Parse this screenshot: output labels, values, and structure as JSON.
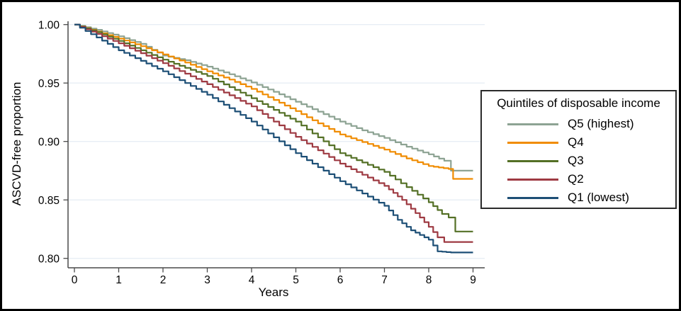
{
  "figure": {
    "y_axis_label": "ASCVD-free proportion",
    "x_axis_label": "Years"
  },
  "legend": {
    "title": "Quintiles of disposable income"
  },
  "colors": {
    "grid": "#e7eef5",
    "axis": "#4a4a4a",
    "tick_text": "#000000",
    "background": "#ffffff",
    "frame": "#000000"
  },
  "chart_data": {
    "type": "line",
    "subtype": "kaplan-meier-step",
    "title": "",
    "xlabel": "Years",
    "ylabel": "ASCVD-free proportion",
    "xlim": [
      0,
      9
    ],
    "ylim": [
      0.8,
      1.0
    ],
    "x_ticks": [
      0,
      1,
      2,
      3,
      4,
      5,
      6,
      7,
      8,
      9
    ],
    "y_ticks": [
      1.0,
      0.95,
      0.9,
      0.85,
      0.8
    ],
    "y_tick_labels": [
      "1.00",
      "0.95",
      "0.90",
      "0.85",
      "0.80"
    ],
    "grid": true,
    "legend_title": "Quintiles of disposable income",
    "legend_position": "right",
    "series": [
      {
        "name": "Q5 (highest)",
        "color": "#8da393",
        "points": [
          [
            0,
            1.0
          ],
          [
            0.5,
            0.9955
          ],
          [
            1,
            0.99
          ],
          [
            1.5,
            0.9835
          ],
          [
            2,
            0.9735
          ],
          [
            2.5,
            0.9695
          ],
          [
            3,
            0.964
          ],
          [
            3.5,
            0.9575
          ],
          [
            4,
            0.9505
          ],
          [
            4.5,
            0.9425
          ],
          [
            5,
            0.934
          ],
          [
            5.5,
            0.9255
          ],
          [
            6,
            0.917
          ],
          [
            6.5,
            0.9095
          ],
          [
            7,
            0.903
          ],
          [
            7.5,
            0.8955
          ],
          [
            8,
            0.889
          ],
          [
            8.35,
            0.8835
          ],
          [
            8.5,
            0.875
          ],
          [
            9,
            0.875
          ]
        ]
      },
      {
        "name": "Q4",
        "color": "#f08c00",
        "points": [
          [
            0,
            1.0
          ],
          [
            0.5,
            0.994
          ],
          [
            1,
            0.988
          ],
          [
            1.5,
            0.9815
          ],
          [
            2,
            0.9745
          ],
          [
            2.5,
            0.9675
          ],
          [
            3,
            0.96
          ],
          [
            3.5,
            0.953
          ],
          [
            4,
            0.945
          ],
          [
            4.5,
            0.9355
          ],
          [
            5,
            0.926
          ],
          [
            5.5,
            0.9155
          ],
          [
            6,
            0.906
          ],
          [
            6.5,
            0.8995
          ],
          [
            7,
            0.893
          ],
          [
            7.5,
            0.8855
          ],
          [
            8,
            0.879
          ],
          [
            8.45,
            0.8765
          ],
          [
            8.55,
            0.868
          ],
          [
            9,
            0.868
          ]
        ]
      },
      {
        "name": "Q3",
        "color": "#547026",
        "points": [
          [
            0,
            1.0
          ],
          [
            0.5,
            0.9935
          ],
          [
            1,
            0.986
          ],
          [
            1.5,
            0.978
          ],
          [
            2,
            0.97
          ],
          [
            2.5,
            0.963
          ],
          [
            3,
            0.956
          ],
          [
            3.5,
            0.9465
          ],
          [
            4,
            0.937
          ],
          [
            4.5,
            0.927
          ],
          [
            5,
            0.917
          ],
          [
            5.5,
            0.9035
          ],
          [
            6,
            0.89
          ],
          [
            6.5,
            0.882
          ],
          [
            7,
            0.874
          ],
          [
            7.5,
            0.861
          ],
          [
            8,
            0.848
          ],
          [
            8.3,
            0.838
          ],
          [
            8.45,
            0.835
          ],
          [
            8.6,
            0.823
          ],
          [
            9,
            0.823
          ]
        ]
      },
      {
        "name": "Q2",
        "color": "#9e3a42",
        "points": [
          [
            0,
            1.0
          ],
          [
            0.5,
            0.992
          ],
          [
            1,
            0.984
          ],
          [
            1.5,
            0.9755
          ],
          [
            2,
            0.967
          ],
          [
            2.5,
            0.958
          ],
          [
            3,
            0.949
          ],
          [
            3.5,
            0.9395
          ],
          [
            4,
            0.93
          ],
          [
            4.5,
            0.917
          ],
          [
            5,
            0.904
          ],
          [
            5.5,
            0.8925
          ],
          [
            6,
            0.881
          ],
          [
            6.5,
            0.8715
          ],
          [
            7,
            0.862
          ],
          [
            7.4,
            0.85
          ],
          [
            7.8,
            0.835
          ],
          [
            8,
            0.827
          ],
          [
            8.2,
            0.818
          ],
          [
            8.35,
            0.814
          ],
          [
            9,
            0.814
          ]
        ]
      },
      {
        "name": "Q1 (lowest)",
        "color": "#1d4f76",
        "points": [
          [
            0,
            1.0
          ],
          [
            0.5,
            0.989
          ],
          [
            1,
            0.978
          ],
          [
            1.5,
            0.969
          ],
          [
            2,
            0.96
          ],
          [
            2.5,
            0.95
          ],
          [
            3,
            0.94
          ],
          [
            3.5,
            0.9285
          ],
          [
            4,
            0.917
          ],
          [
            4.5,
            0.9035
          ],
          [
            5,
            0.89
          ],
          [
            5.5,
            0.878
          ],
          [
            6,
            0.866
          ],
          [
            6.5,
            0.8555
          ],
          [
            7,
            0.845
          ],
          [
            7.3,
            0.833
          ],
          [
            7.6,
            0.824
          ],
          [
            8,
            0.816
          ],
          [
            8.2,
            0.806
          ],
          [
            8.5,
            0.805
          ],
          [
            9,
            0.805
          ]
        ]
      }
    ]
  }
}
